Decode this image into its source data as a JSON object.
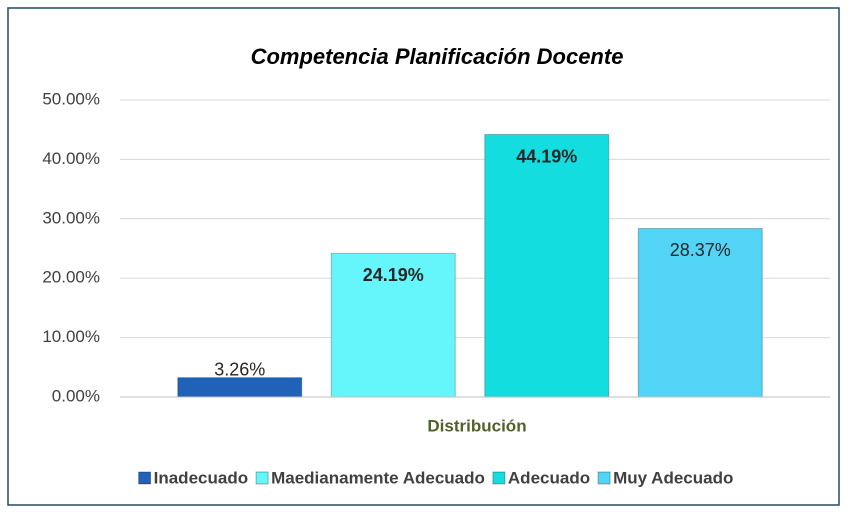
{
  "chart_data": {
    "type": "bar",
    "title": "Competencia Planificación Docente",
    "categories": [
      "Distribución"
    ],
    "series": [
      {
        "name": "Inadecuado",
        "color": "#1f62b8",
        "values": [
          3.26
        ],
        "value_labels": [
          "3.26%"
        ],
        "bold": false
      },
      {
        "name": "Maedianamente Adecuado",
        "color": "#64f6fb",
        "values": [
          24.19
        ],
        "value_labels": [
          "24.19%"
        ],
        "bold": true
      },
      {
        "name": "Adecuado",
        "color": "#14dde0",
        "values": [
          44.19
        ],
        "value_labels": [
          "44.19%"
        ],
        "bold": true
      },
      {
        "name": "Muy Adecuado",
        "color": "#52d4f6",
        "values": [
          28.37
        ],
        "value_labels": [
          "28.37%"
        ],
        "bold": false
      }
    ],
    "ylim": [
      0,
      50
    ],
    "yticks": [
      {
        "value": 0,
        "label": "0.00%"
      },
      {
        "value": 10,
        "label": "10.00%"
      },
      {
        "value": 20,
        "label": "20.00%"
      },
      {
        "value": 30,
        "label": "30.00%"
      },
      {
        "value": 40,
        "label": "40.00%"
      },
      {
        "value": 50,
        "label": "50.00%"
      }
    ],
    "grid": true,
    "legend": "bottom"
  }
}
